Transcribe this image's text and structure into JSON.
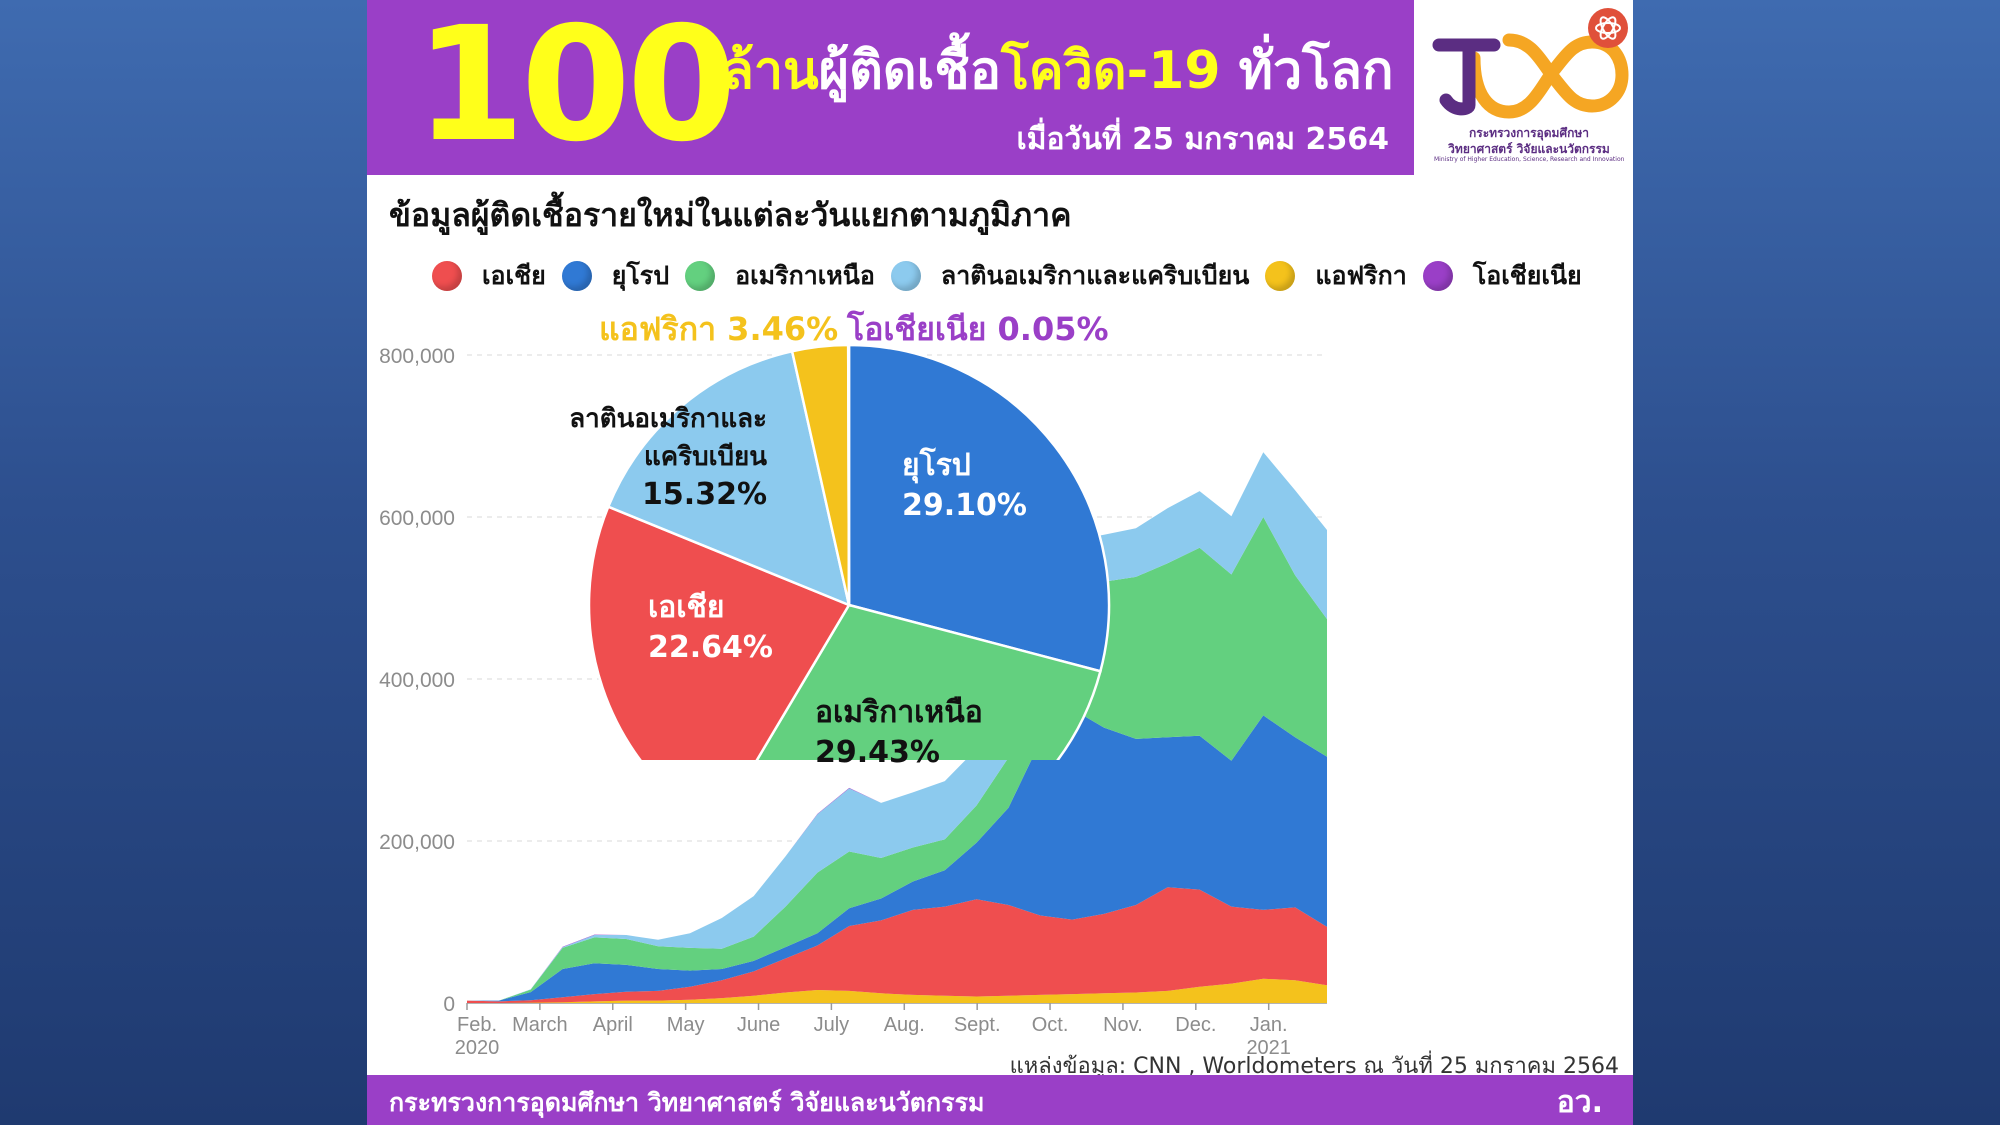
{
  "header": {
    "big_number": "100",
    "title_part1": "ล้าน",
    "title_part2": "ผู้ติดเชื้อ",
    "title_part3": "โควิด-19",
    "title_part4": " ทั่วโลก",
    "date": "เมื่อวันที่ 25 มกราคม 2564"
  },
  "logo": {
    "line1": "กระทรวงการอุดมศึกษา",
    "line2": "วิทยาศาสตร์ วิจัยและนวัตกรรม",
    "line3": "Ministry of Higher Education, Science, Research and Innovation"
  },
  "subtitle": "ข้อมูลผู้ติดเชื้อรายใหม่ในแต่ละวันแยกตามภูมิภาค",
  "colors": {
    "asia": "#ef4e4f",
    "europe": "#3079d4",
    "north_america": "#63d07f",
    "latin_america": "#8ccaee",
    "africa": "#f4c21c",
    "oceania": "#9a3fc7"
  },
  "legend": [
    "เอเชีย",
    "ยุโรป",
    "อเมริกาเหนือ",
    "ลาตินอเมริกาและแคริบเบียน",
    "แอฟริกา",
    "โอเชียเนีย"
  ],
  "chart_data": [
    {
      "type": "area",
      "title": "ข้อมูลผู้ติดเชื้อรายใหม่ในแต่ละวันแยกตามภูมิภาค",
      "stacked": true,
      "ylim": [
        0,
        800000
      ],
      "yticks": [
        0,
        200000,
        400000,
        600000,
        800000
      ],
      "ytick_labels": [
        "0",
        "200,000",
        "400,000",
        "600,000",
        "800,000"
      ],
      "xtick_labels": [
        "Feb.\n2020",
        "March",
        "April",
        "May",
        "June",
        "July",
        "Aug.",
        "Sept.",
        "Oct.",
        "Nov.",
        "Dec.",
        "Jan.\n2021"
      ],
      "x": [
        "Feb 2020",
        "Mar 1",
        "Mar 15",
        "Apr 1",
        "Apr 10",
        "Apr 20",
        "May 1",
        "May 15",
        "Jun 1",
        "Jun 15",
        "Jul 1",
        "Jul 15",
        "Aug 1",
        "Aug 15",
        "Sep 1",
        "Sep 15",
        "Oct 1",
        "Oct 15",
        "Nov 1",
        "Nov 10",
        "Nov 20",
        "Dec 1",
        "Dec 10",
        "Dec 20",
        "Jan 1",
        "Jan 8",
        "Jan 15",
        "Jan 25"
      ],
      "series": [
        {
          "name": "แอฟริกา",
          "values": [
            0,
            0,
            500,
            1000,
            2000,
            3000,
            3000,
            4000,
            6000,
            9000,
            13000,
            16000,
            15000,
            12000,
            10000,
            9000,
            8000,
            9000,
            10000,
            11000,
            12000,
            13000,
            15000,
            20000,
            24000,
            30000,
            28000,
            22000
          ]
        },
        {
          "name": "เอเชีย",
          "values": [
            3000,
            2000,
            3000,
            6000,
            9000,
            11000,
            12000,
            16000,
            22000,
            30000,
            42000,
            55000,
            80000,
            90000,
            105000,
            110000,
            120000,
            112000,
            98000,
            92000,
            98000,
            108000,
            128000,
            120000,
            95000,
            85000,
            90000,
            72000
          ]
        },
        {
          "name": "ยุโรป",
          "values": [
            0,
            1000,
            10000,
            35000,
            38000,
            33000,
            27000,
            20000,
            14000,
            13000,
            14000,
            15000,
            22000,
            27000,
            35000,
            45000,
            70000,
            120000,
            215000,
            260000,
            230000,
            205000,
            185000,
            190000,
            180000,
            240000,
            210000,
            210000
          ]
        },
        {
          "name": "อเมริกาเหนือ",
          "values": [
            0,
            0,
            3000,
            26000,
            32000,
            32000,
            28000,
            28000,
            25000,
            30000,
            50000,
            75000,
            70000,
            50000,
            42000,
            38000,
            46000,
            62000,
            100000,
            150000,
            180000,
            200000,
            215000,
            232000,
            230000,
            245000,
            200000,
            170000
          ]
        },
        {
          "name": "ลาตินอเมริกาและแคริบเบียน",
          "values": [
            0,
            0,
            500,
            1000,
            3000,
            5000,
            8000,
            18000,
            38000,
            50000,
            62000,
            72000,
            78000,
            68000,
            68000,
            72000,
            70000,
            65000,
            57000,
            58000,
            58000,
            60000,
            68000,
            70000,
            72000,
            80000,
            105000,
            110000
          ]
        },
        {
          "name": "โอเชียเนีย",
          "values": [
            0,
            0,
            0,
            500,
            500,
            0,
            0,
            0,
            0,
            0,
            0,
            500,
            500,
            0,
            0,
            0,
            0,
            0,
            0,
            0,
            0,
            0,
            0,
            0,
            0,
            0,
            0,
            0
          ]
        }
      ]
    },
    {
      "type": "pie",
      "categories": [
        "ยุโรป",
        "อเมริกาเหนือ",
        "เอเชีย",
        "ลาตินอเมริกาและแคริบเบียน",
        "แอฟริกา",
        "โอเชียเนีย"
      ],
      "values": [
        29.1,
        29.43,
        22.64,
        15.32,
        3.46,
        0.05
      ],
      "labels": [
        {
          "line1": "ยุโรป",
          "line2": "29.10%"
        },
        {
          "line1": "อเมริกาเหนือ",
          "line2": "29.43%"
        },
        {
          "line1": "เอเชีย",
          "line2": "22.64%"
        },
        {
          "line1": "ลาตินอเมริกาและ",
          "line2": "แคริบเบียน",
          "line3": "15.32%"
        },
        {
          "line1": "แอฟริกา 3.46%"
        },
        {
          "line1": "โอเชียเนีย 0.05%"
        }
      ]
    }
  ],
  "source": "แหล่งข้อมูล: CNN , Worldometers ณ วันที่ 25 มกราคม 2564",
  "footer": {
    "ministry": "กระทรวงการอุดมศึกษา วิทยาศาสตร์ วิจัยและนวัตกรรม",
    "abbr": "อว."
  }
}
